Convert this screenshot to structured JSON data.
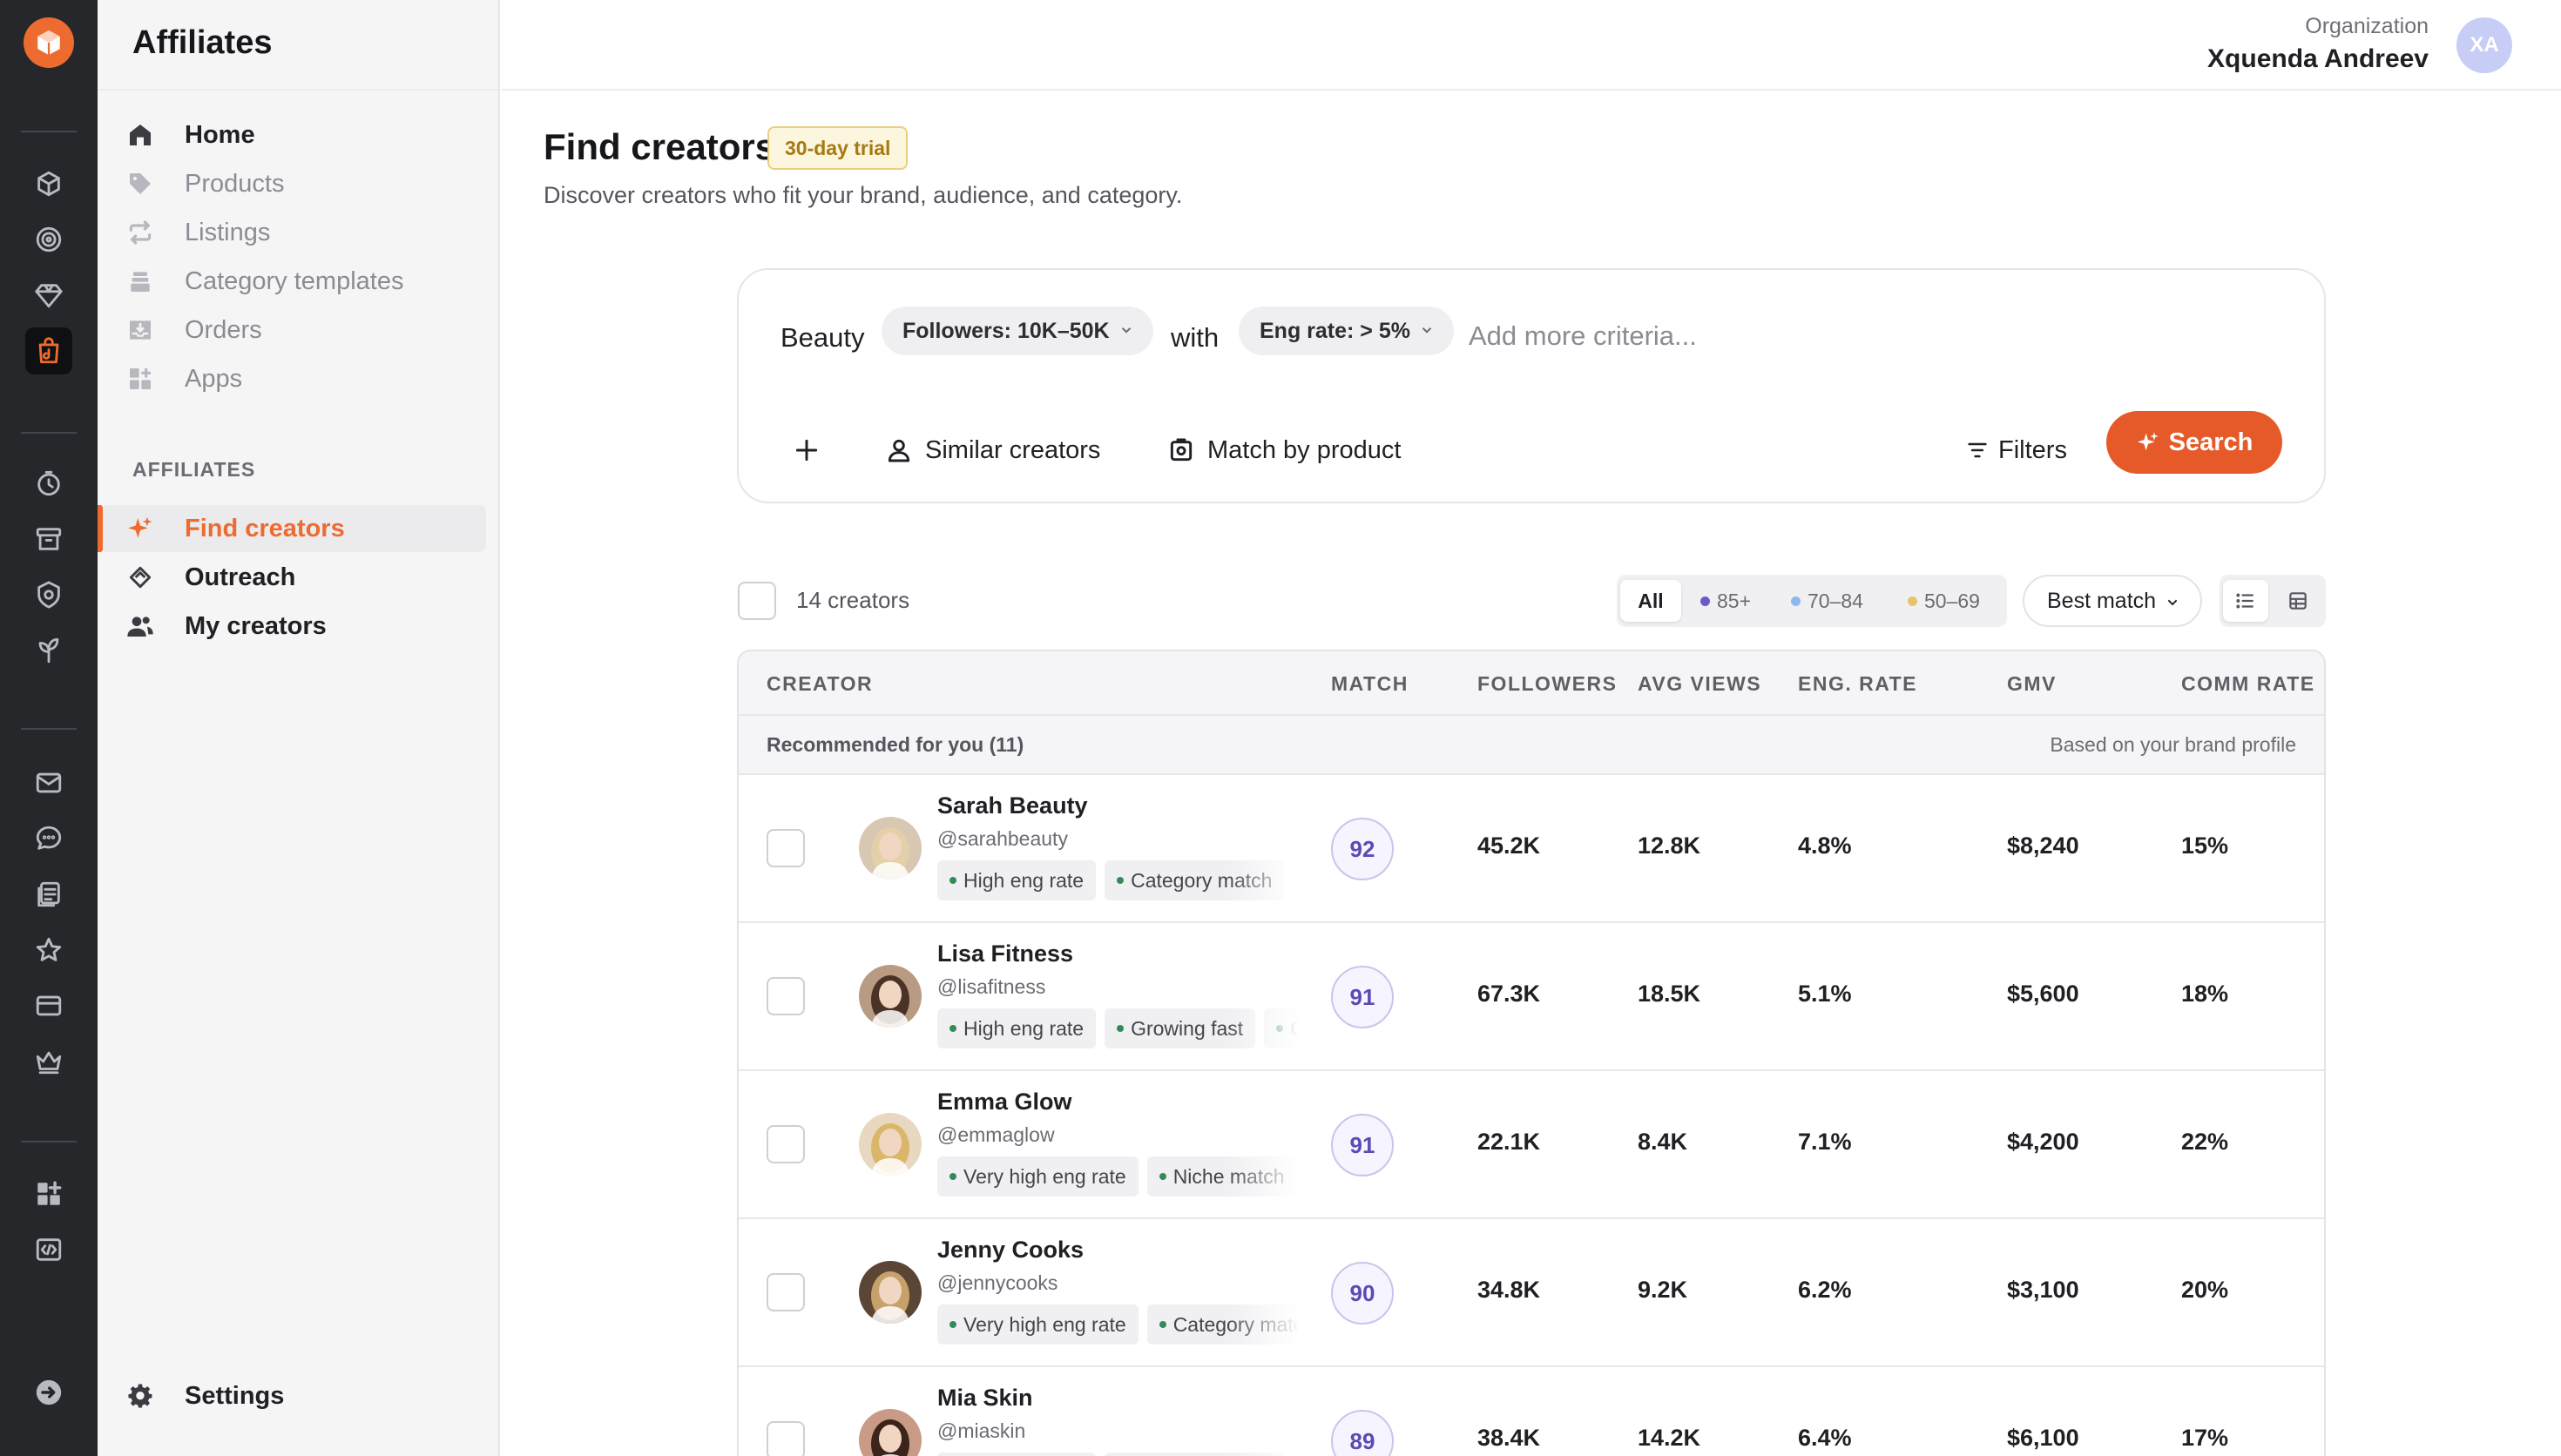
{
  "app": {
    "title": "Affiliates"
  },
  "org": {
    "label": "Organization",
    "name": "Xquenda Andreev",
    "initials": "XA"
  },
  "nav": {
    "items": [
      {
        "label": "Home"
      },
      {
        "label": "Products"
      },
      {
        "label": "Listings"
      },
      {
        "label": "Category templates"
      },
      {
        "label": "Orders"
      },
      {
        "label": "Apps"
      }
    ],
    "section": "AFFILIATES",
    "affiliates": [
      {
        "label": "Find creators"
      },
      {
        "label": "Outreach"
      },
      {
        "label": "My creators"
      }
    ],
    "settings": "Settings"
  },
  "page": {
    "title": "Find creators",
    "badge": "30-day trial",
    "subtitle": "Discover creators who fit your brand, audience, and category."
  },
  "search": {
    "category": "Beauty",
    "chip_followers": "Followers: 10K–50K",
    "connector": "with",
    "chip_eng": "Eng rate: > 5%",
    "placeholder": "Add more criteria...",
    "similar": "Similar creators",
    "match_product": "Match by product",
    "filters": "Filters",
    "search": "Search"
  },
  "results": {
    "count": "14 creators",
    "segments": [
      "All",
      "85+",
      "70–84",
      "50–69"
    ],
    "segment_colors": [
      "",
      "#6a5acd",
      "#8fb7f0",
      "#e7c36b"
    ],
    "sort": "Best match"
  },
  "table": {
    "columns": [
      "CREATOR",
      "MATCH",
      "FOLLOWERS",
      "AVG VIEWS",
      "ENG. RATE",
      "GMV",
      "COMM RATE"
    ],
    "group_label": "Recommended for you (11)",
    "group_note": "Based on your brand profile",
    "rows": [
      {
        "name": "Sarah Beauty",
        "handle": "@sarahbeauty",
        "tags": [
          "High eng rate",
          "Category match"
        ],
        "match": "92",
        "followers": "45.2K",
        "avg_views": "12.8K",
        "eng_rate": "4.8%",
        "gmv": "$8,240",
        "comm": "15%",
        "avatar_color": "#d8c7b3",
        "hair": "#e3d0a8"
      },
      {
        "name": "Lisa Fitness",
        "handle": "@lisafitness",
        "tags": [
          "High eng rate",
          "Growing fast",
          "Category match"
        ],
        "match": "91",
        "followers": "67.3K",
        "avg_views": "18.5K",
        "eng_rate": "5.1%",
        "gmv": "$5,600",
        "comm": "18%",
        "avatar_color": "#b99b83",
        "hair": "#4a3326"
      },
      {
        "name": "Emma Glow",
        "handle": "@emmaglow",
        "tags": [
          "Very high eng rate",
          "Niche match"
        ],
        "match": "91",
        "followers": "22.1K",
        "avg_views": "8.4K",
        "eng_rate": "7.1%",
        "gmv": "$4,200",
        "comm": "22%",
        "avatar_color": "#e7d8bf",
        "hair": "#d9b66a"
      },
      {
        "name": "Jenny Cooks",
        "handle": "@jennycooks",
        "tags": [
          "Very high eng rate",
          "Category match"
        ],
        "match": "90",
        "followers": "34.8K",
        "avg_views": "9.2K",
        "eng_rate": "6.2%",
        "gmv": "$3,100",
        "comm": "20%",
        "avatar_color": "#5b4636",
        "hair": "#c7a16a"
      },
      {
        "name": "Mia Skin",
        "handle": "@miaskin",
        "tags": [
          "High eng rate",
          "Category match"
        ],
        "match": "89",
        "followers": "38.4K",
        "avg_views": "14.2K",
        "eng_rate": "6.4%",
        "gmv": "$6,100",
        "comm": "17%",
        "avatar_color": "#c99a86",
        "hair": "#3b2419"
      }
    ]
  }
}
